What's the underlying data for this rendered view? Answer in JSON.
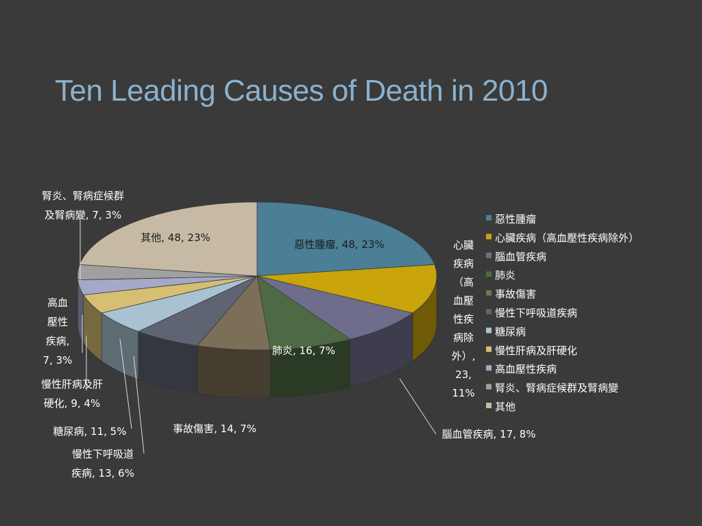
{
  "title": "Ten Leading Causes of Death in 2010",
  "chart_data": {
    "type": "pie",
    "title": "",
    "categories": [
      "惡性腫瘤",
      "心臟疾病（高血壓性疾病除外）",
      "腦血管疾病",
      "肺炎",
      "事故傷害",
      "慢性下呼吸道疾病",
      "糖尿病",
      "慢性肝病及肝硬化",
      "高血壓性疾病",
      "腎炎、腎病症候群及腎病變",
      "其他"
    ],
    "values": [
      48,
      23,
      17,
      16,
      14,
      13,
      11,
      9,
      7,
      7,
      48
    ],
    "percents": [
      23,
      11,
      8,
      7,
      7,
      6,
      5,
      4,
      3,
      3,
      23
    ],
    "colors": [
      "#4a7f96",
      "#c9a40a",
      "#6e6e8c",
      "#4e6a44",
      "#7c6f58",
      "#5f6473",
      "#a9c2d1",
      "#d6bf73",
      "#a5a8c7",
      "#a0a0a0",
      "#c6baa4"
    ],
    "data_labels": [
      [
        "惡性腫瘤, 48, 23%"
      ],
      [
        "心臟",
        "疾病",
        "（高",
        "血壓",
        "性疾",
        "病除",
        "外）,",
        "23,",
        "11%"
      ],
      [
        "腦血管疾病, 17, 8%"
      ],
      [
        "肺炎, 16, 7%"
      ],
      [
        "事故傷害, 14, 7%"
      ],
      [
        "慢性下呼吸道",
        "疾病, 13, 6%"
      ],
      [
        "糖尿病, 11, 5%"
      ],
      [
        "慢性肝病及肝",
        "硬化, 9, 4%"
      ],
      [
        "高血",
        "壓性",
        "疾病,",
        "7, 3%"
      ],
      [
        "腎炎、腎病症候群",
        "及腎病變, 7, 3%"
      ],
      [
        "其他, 48, 23%"
      ]
    ],
    "legend_position": "right"
  }
}
